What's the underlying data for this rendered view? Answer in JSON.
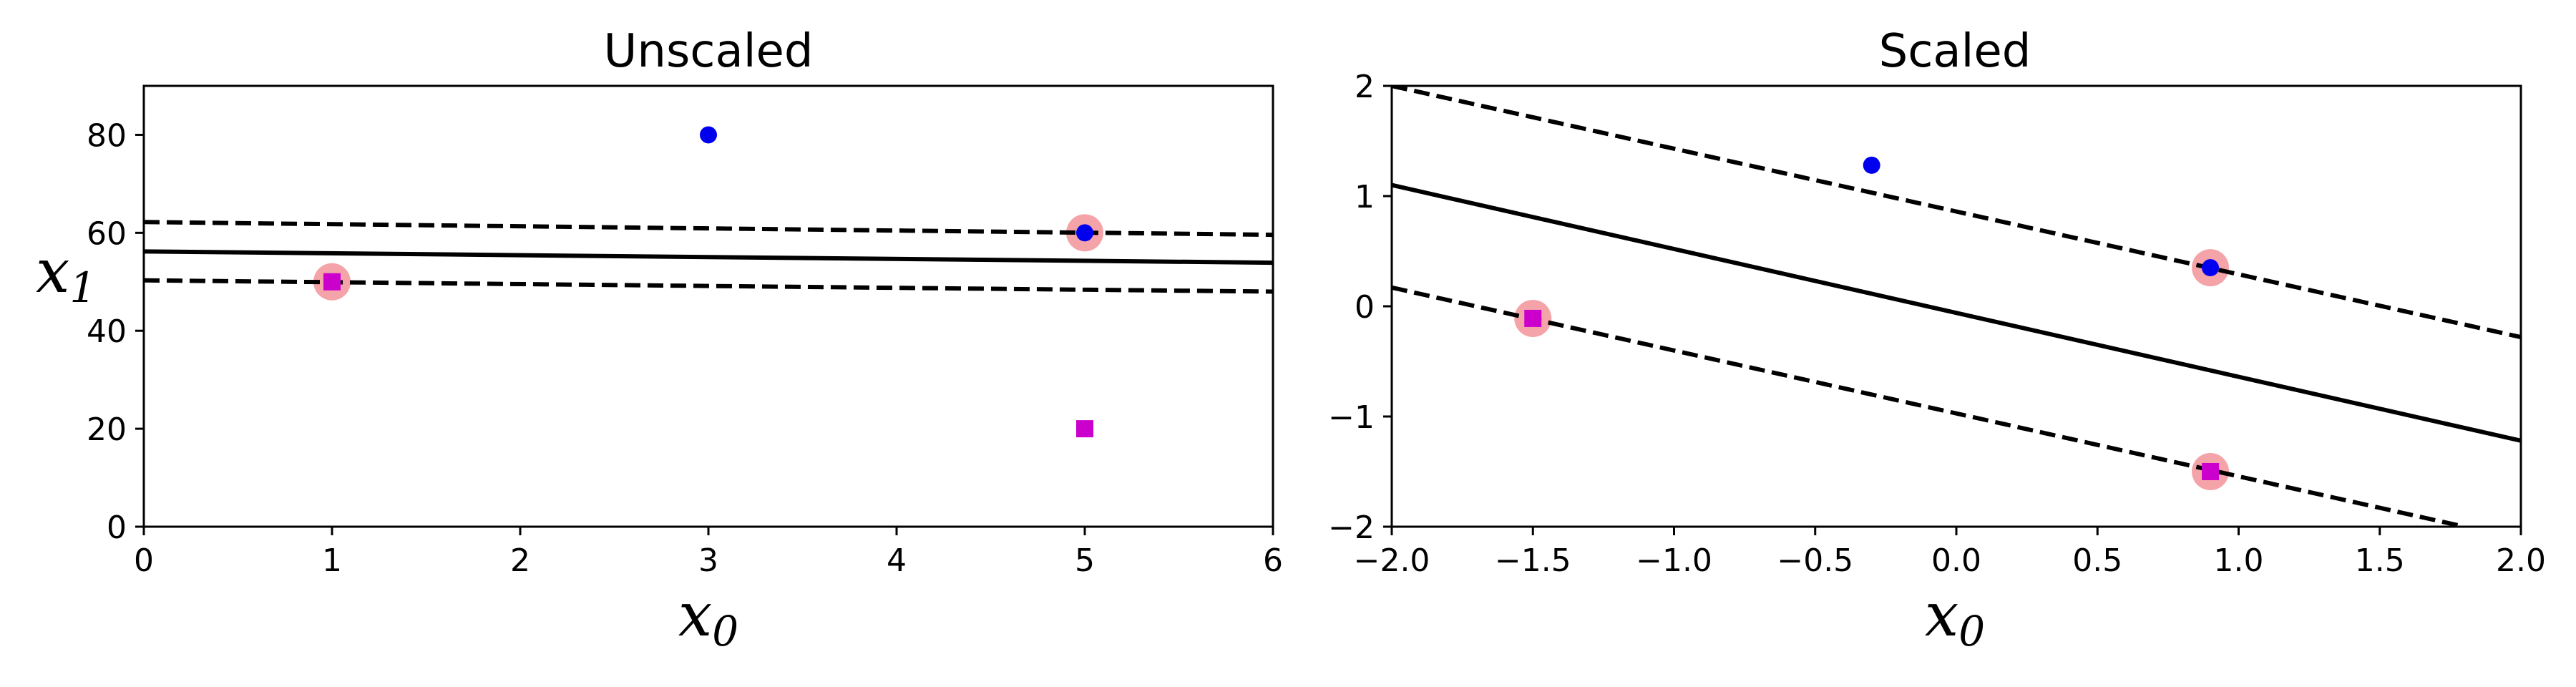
{
  "chart_data": [
    {
      "type": "scatter",
      "title": "Unscaled",
      "xlabel": "x",
      "xlabel_sub": "0",
      "ylabel": "x",
      "ylabel_sub": "1",
      "xlim": [
        0,
        6
      ],
      "ylim": [
        0,
        90
      ],
      "xticks": [
        0,
        1,
        2,
        3,
        4,
        5,
        6
      ],
      "xtick_labels": [
        "0",
        "1",
        "2",
        "3",
        "4",
        "5",
        "6"
      ],
      "yticks": [
        0,
        20,
        40,
        60,
        80
      ],
      "ytick_labels": [
        "0",
        "20",
        "40",
        "60",
        "80"
      ],
      "grid": false,
      "series": [
        {
          "marker": "square",
          "color": "#cc00cc",
          "points": [
            [
              1,
              50
            ],
            [
              5,
              20
            ]
          ]
        },
        {
          "marker": "circle",
          "color": "#0000ee",
          "points": [
            [
              3,
              80
            ],
            [
              5,
              60
            ]
          ]
        }
      ],
      "support_vectors": {
        "color": "#f4a3a8",
        "points": [
          [
            1,
            50
          ],
          [
            5,
            60
          ]
        ]
      },
      "lines": [
        {
          "style": "solid",
          "points": [
            [
              0,
              56.2
            ],
            [
              6,
              53.9
            ]
          ]
        },
        {
          "style": "dashed",
          "points": [
            [
              0,
              62.2
            ],
            [
              6,
              59.6
            ]
          ]
        },
        {
          "style": "dashed",
          "points": [
            [
              0,
              50.3
            ],
            [
              6,
              48.0
            ]
          ]
        }
      ]
    },
    {
      "type": "scatter",
      "title": "Scaled",
      "xlabel": "x",
      "xlabel_sub": "0",
      "ylabel": "",
      "xlim": [
        -2.0,
        2.0
      ],
      "ylim": [
        -2,
        2
      ],
      "xticks": [
        -2.0,
        -1.5,
        -1.0,
        -0.5,
        0.0,
        0.5,
        1.0,
        1.5,
        2.0
      ],
      "xtick_labels": [
        "−2.0",
        "−1.5",
        "−1.0",
        "−0.5",
        "0.0",
        "0.5",
        "1.0",
        "1.5",
        "2.0"
      ],
      "yticks": [
        -2,
        -1,
        0,
        1,
        2
      ],
      "ytick_labels": [
        "−2",
        "−1",
        "0",
        "1",
        "2"
      ],
      "grid": false,
      "series": [
        {
          "marker": "square",
          "color": "#cc00cc",
          "points": [
            [
              -1.5,
              -0.11
            ],
            [
              0.9,
              -1.5
            ]
          ]
        },
        {
          "marker": "circle",
          "color": "#0000ee",
          "points": [
            [
              -0.3,
              1.28
            ],
            [
              0.9,
              0.35
            ]
          ]
        }
      ],
      "support_vectors": {
        "color": "#f4a3a8",
        "points": [
          [
            -1.5,
            -0.11
          ],
          [
            0.9,
            0.35
          ],
          [
            0.9,
            -1.5
          ]
        ]
      },
      "lines": [
        {
          "style": "solid",
          "points": [
            [
              -2.0,
              1.1
            ],
            [
              2.0,
              -1.22
            ]
          ]
        },
        {
          "style": "dashed",
          "points": [
            [
              -2.0,
              2.0
            ],
            [
              2.0,
              -0.28
            ]
          ]
        },
        {
          "style": "dashed",
          "points": [
            [
              -2.0,
              0.17
            ],
            [
              1.8,
              -2.0
            ]
          ]
        }
      ]
    }
  ]
}
